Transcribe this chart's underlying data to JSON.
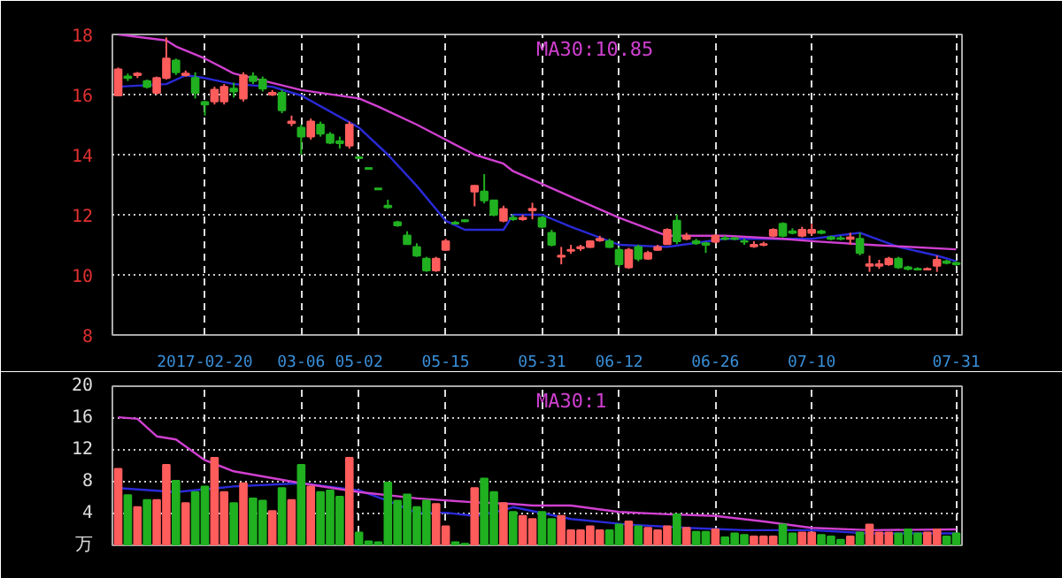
{
  "chart_data": [
    {
      "type": "candlestick",
      "categories": [
        null,
        null,
        null,
        null,
        null,
        null,
        null,
        null,
        null,
        "2017-02-20",
        null,
        null,
        null,
        null,
        null,
        null,
        null,
        null,
        null,
        "03-06",
        null,
        null,
        null,
        null,
        null,
        "05-02",
        null,
        null,
        null,
        null,
        null,
        null,
        null,
        null,
        "05-15",
        null,
        null,
        null,
        null,
        null,
        null,
        null,
        null,
        null,
        "05-31",
        null,
        null,
        null,
        null,
        null,
        null,
        null,
        "06-12",
        null,
        null,
        null,
        null,
        null,
        null,
        null,
        null,
        null,
        "06-26",
        null,
        null,
        null,
        null,
        null,
        null,
        null,
        null,
        null,
        "07-10",
        null,
        null,
        null,
        null,
        null,
        null,
        null,
        null,
        null,
        null,
        null,
        null,
        null,
        null,
        "07-31"
      ],
      "ohlc": [
        [
          15.97,
          16.9,
          15.95,
          16.84
        ],
        [
          16.6,
          16.7,
          16.45,
          16.55
        ],
        [
          16.65,
          16.75,
          16.55,
          16.7
        ],
        [
          16.45,
          16.5,
          16.2,
          16.26
        ],
        [
          16.06,
          16.6,
          16.0,
          16.55
        ],
        [
          16.55,
          17.9,
          16.5,
          17.2
        ],
        [
          17.13,
          17.2,
          16.65,
          16.74
        ],
        [
          16.65,
          16.8,
          16.6,
          16.7
        ],
        [
          16.55,
          16.74,
          15.87,
          16.06
        ],
        [
          15.75,
          15.8,
          15.3,
          15.67
        ],
        [
          15.77,
          16.26,
          15.67,
          16.16
        ],
        [
          15.77,
          16.35,
          15.67,
          16.26
        ],
        [
          16.2,
          16.4,
          15.9,
          16.1
        ],
        [
          15.87,
          16.74,
          15.77,
          16.64
        ],
        [
          16.6,
          16.74,
          16.35,
          16.45
        ],
        [
          16.5,
          16.6,
          16.1,
          16.2
        ],
        [
          16.0,
          16.15,
          15.95,
          16.06
        ],
        [
          16.06,
          16.16,
          15.38,
          15.48
        ],
        [
          15.05,
          15.3,
          14.95,
          15.1
        ],
        [
          14.9,
          15.0,
          14.0,
          14.6
        ],
        [
          14.6,
          15.2,
          14.5,
          15.1
        ],
        [
          15.0,
          15.1,
          14.6,
          14.7
        ],
        [
          14.67,
          14.75,
          14.35,
          14.4
        ],
        [
          14.45,
          14.6,
          14.2,
          14.38
        ],
        [
          14.3,
          15.1,
          14.2,
          15.0
        ],
        [
          13.9,
          13.9,
          13.9,
          13.9
        ],
        [
          13.54,
          13.54,
          13.54,
          13.54
        ],
        [
          12.86,
          12.86,
          12.86,
          12.86
        ],
        [
          12.3,
          12.5,
          12.2,
          12.25
        ],
        [
          11.75,
          11.8,
          11.6,
          11.65
        ],
        [
          11.31,
          11.45,
          11.0,
          11.02
        ],
        [
          10.93,
          11.05,
          10.6,
          10.64
        ],
        [
          10.54,
          10.6,
          10.1,
          10.15
        ],
        [
          10.15,
          10.6,
          10.1,
          10.54
        ],
        [
          10.83,
          11.2,
          10.8,
          11.12
        ],
        [
          11.72,
          11.8,
          11.7,
          11.72
        ],
        [
          11.8,
          11.85,
          11.75,
          11.8
        ],
        [
          12.77,
          12.98,
          12.28,
          12.96
        ],
        [
          12.77,
          13.35,
          12.38,
          12.48
        ],
        [
          12.48,
          12.5,
          11.95,
          12.0
        ],
        [
          11.8,
          12.3,
          11.75,
          12.19
        ],
        [
          11.9,
          12.0,
          11.8,
          11.85
        ],
        [
          11.85,
          12.0,
          11.8,
          11.9
        ],
        [
          12.15,
          12.4,
          11.85,
          12.2
        ],
        [
          11.9,
          11.95,
          11.55,
          11.6
        ],
        [
          11.4,
          11.5,
          10.95,
          11.0
        ],
        [
          10.6,
          10.93,
          10.35,
          10.64
        ],
        [
          10.8,
          11.0,
          10.7,
          10.83
        ],
        [
          10.88,
          11.0,
          10.8,
          10.93
        ],
        [
          10.93,
          11.15,
          10.9,
          11.12
        ],
        [
          11.15,
          11.3,
          11.1,
          11.2
        ],
        [
          11.12,
          11.2,
          10.9,
          10.93
        ],
        [
          10.83,
          10.93,
          10.25,
          10.35
        ],
        [
          10.25,
          10.9,
          10.2,
          10.83
        ],
        [
          10.93,
          11.0,
          10.45,
          10.54
        ],
        [
          10.54,
          10.8,
          10.5,
          10.73
        ],
        [
          10.83,
          11.0,
          10.8,
          10.93
        ],
        [
          11.02,
          11.55,
          11.0,
          11.5
        ],
        [
          11.8,
          12.0,
          11.02,
          11.12
        ],
        [
          11.2,
          11.4,
          11.15,
          11.3
        ],
        [
          11.12,
          11.2,
          11.0,
          11.05
        ],
        [
          11.05,
          11.1,
          10.73,
          11.0
        ],
        [
          11.1,
          11.35,
          11.05,
          11.3
        ],
        [
          11.22,
          11.3,
          11.15,
          11.2
        ],
        [
          11.22,
          11.25,
          11.15,
          11.2
        ],
        [
          11.12,
          11.2,
          11.0,
          11.1
        ],
        [
          10.95,
          11.12,
          10.9,
          11.0
        ],
        [
          11.0,
          11.1,
          10.95,
          11.02
        ],
        [
          11.3,
          11.55,
          11.25,
          11.5
        ],
        [
          11.7,
          11.75,
          11.25,
          11.3
        ],
        [
          11.45,
          11.55,
          11.35,
          11.4
        ],
        [
          11.3,
          11.6,
          11.25,
          11.5
        ],
        [
          11.4,
          11.7,
          11.3,
          11.5
        ],
        [
          11.45,
          11.5,
          11.35,
          11.4
        ],
        [
          11.25,
          11.3,
          11.15,
          11.2
        ],
        [
          11.22,
          11.3,
          11.15,
          11.2
        ],
        [
          11.2,
          11.4,
          11.0,
          11.25
        ],
        [
          11.2,
          11.4,
          10.65,
          10.73
        ],
        [
          10.3,
          10.64,
          10.1,
          10.35
        ],
        [
          10.3,
          10.5,
          10.2,
          10.35
        ],
        [
          10.35,
          10.6,
          10.3,
          10.54
        ],
        [
          10.54,
          10.6,
          10.2,
          10.25
        ],
        [
          10.25,
          10.3,
          10.15,
          10.2
        ],
        [
          10.2,
          10.25,
          10.15,
          10.18
        ],
        [
          10.18,
          10.25,
          10.15,
          10.2
        ],
        [
          10.3,
          10.64,
          10.1,
          10.5
        ],
        [
          10.45,
          10.5,
          10.35,
          10.4
        ],
        [
          10.4,
          10.45,
          10.3,
          10.35
        ]
      ],
      "colors": [
        "#ff5c5c",
        "#20b020",
        "#ff5c5c",
        "#20b020",
        "#ff5c5c",
        "#ff5c5c",
        "#20b020",
        "#ff5c5c",
        "#20b020",
        "#20b020",
        "#ff5c5c",
        "#ff5c5c",
        "#20b020",
        "#ff5c5c",
        "#20b020",
        "#20b020",
        "#ff5c5c",
        "#20b020",
        "#ff5c5c",
        "#20b020",
        "#ff5c5c",
        "#20b020",
        "#20b020",
        "#20b020",
        "#ff5c5c",
        "#20b020",
        "#20b020",
        "#20b020",
        "#20b020",
        "#20b020",
        "#20b020",
        "#20b020",
        "#20b020",
        "#ff5c5c",
        "#ff5c5c",
        "#20b020",
        "#20b020",
        "#ff5c5c",
        "#20b020",
        "#20b020",
        "#ff5c5c",
        "#20b020",
        "#ff5c5c",
        "#ff5c5c",
        "#20b020",
        "#20b020",
        "#ff5c5c",
        "#ff5c5c",
        "#ff5c5c",
        "#ff5c5c",
        "#ff5c5c",
        "#20b020",
        "#20b020",
        "#ff5c5c",
        "#20b020",
        "#ff5c5c",
        "#ff5c5c",
        "#ff5c5c",
        "#20b020",
        "#ff5c5c",
        "#20b020",
        "#20b020",
        "#ff5c5c",
        "#20b020",
        "#20b020",
        "#20b020",
        "#ff5c5c",
        "#ff5c5c",
        "#ff5c5c",
        "#20b020",
        "#20b020",
        "#ff5c5c",
        "#ff5c5c",
        "#20b020",
        "#20b020",
        "#20b020",
        "#ff5c5c",
        "#20b020",
        "#ff5c5c",
        "#ff5c5c",
        "#ff5c5c",
        "#20b020",
        "#20b020",
        "#20b020",
        "#ff5c5c",
        "#ff5c5c",
        "#20b020",
        "#20b020"
      ],
      "series": [
        {
          "type": "line",
          "color": "#2a2ad8",
          "values": [
            16.26,
            null,
            null,
            null,
            null,
            16.35,
            null,
            16.64,
            null,
            16.55,
            null,
            null,
            16.35,
            null,
            null,
            null,
            16.26,
            null,
            null,
            15.97,
            null,
            null,
            null,
            null,
            null,
            14.9,
            null,
            null,
            14.0,
            null,
            null,
            12.96,
            null,
            null,
            11.8,
            null,
            11.5,
            null,
            null,
            null,
            11.5,
            12.0,
            null,
            null,
            12.0,
            null,
            null,
            11.6,
            null,
            null,
            null,
            null,
            11.0,
            null,
            null,
            null,
            null,
            10.93,
            null,
            null,
            null,
            null,
            null,
            11.2,
            null,
            null,
            null,
            null,
            null,
            11.2,
            null,
            null,
            11.2,
            null,
            null,
            null,
            null,
            11.4,
            null,
            null,
            null,
            10.93,
            null,
            null,
            null,
            10.64,
            null,
            10.45
          ]
        },
        {
          "type": "line",
          "name": "MA30:10.85",
          "color": "#d040d0",
          "values": [
            18.0,
            null,
            null,
            null,
            null,
            17.8,
            17.6,
            null,
            null,
            17.2,
            null,
            null,
            16.7,
            null,
            null,
            null,
            null,
            null,
            null,
            16.15,
            null,
            null,
            null,
            null,
            null,
            15.87,
            null,
            15.6,
            null,
            null,
            null,
            15.0,
            null,
            null,
            14.5,
            null,
            null,
            14.0,
            null,
            null,
            13.7,
            13.45,
            null,
            null,
            null,
            null,
            null,
            12.6,
            null,
            null,
            null,
            null,
            11.9,
            null,
            null,
            null,
            null,
            11.3,
            null,
            null,
            null,
            null,
            null,
            11.3,
            null,
            null,
            null,
            null,
            null,
            11.2,
            null,
            null,
            11.12,
            null,
            null,
            null,
            null,
            null,
            11.0,
            null,
            null,
            null,
            null,
            null,
            null,
            null,
            null,
            10.85
          ]
        }
      ],
      "ylim": [
        8,
        18
      ],
      "yticks": [
        8,
        10,
        12,
        14,
        16,
        18
      ],
      "grid": true,
      "legend": "top"
    },
    {
      "type": "bar",
      "categories": [
        null,
        null,
        null,
        null,
        null,
        null,
        null,
        null,
        null,
        null,
        null,
        null,
        null,
        null,
        null,
        null,
        null,
        null,
        null,
        null,
        null,
        null,
        null,
        null,
        null,
        null,
        null,
        null,
        null,
        null,
        null,
        null,
        null,
        null,
        null,
        null,
        null,
        null,
        null,
        null,
        null,
        null,
        null,
        null,
        null,
        null,
        null,
        null,
        null,
        null,
        null,
        null,
        null,
        null,
        null,
        null,
        null,
        null,
        null,
        null,
        null,
        null,
        null,
        null,
        null,
        null,
        null,
        null,
        null,
        null,
        null,
        null,
        null,
        null,
        null,
        null,
        null,
        null,
        null,
        null,
        null,
        null,
        null,
        null,
        null,
        null,
        null,
        null
      ],
      "tick_labels": "y",
      "values": [
        9.6,
        6.3,
        4.8,
        5.7,
        5.7,
        10.1,
        8.1,
        5.3,
        6.7,
        7.4,
        11.0,
        6.7,
        5.3,
        7.8,
        5.9,
        5.6,
        4.3,
        7.2,
        5.7,
        10.1,
        7.4,
        6.7,
        6.9,
        6.1,
        11.0,
        1.6,
        0.5,
        0.4,
        7.9,
        5.6,
        6.4,
        4.8,
        5.6,
        5.2,
        2.4,
        0.4,
        0.2,
        7.2,
        8.4,
        6.7,
        5.3,
        4.2,
        3.7,
        3.3,
        4.2,
        3.3,
        3.7,
        1.9,
        1.9,
        2.4,
        1.9,
        1.9,
        2.6,
        3.0,
        2.4,
        2.2,
        1.9,
        2.4,
        3.9,
        2.2,
        1.7,
        1.7,
        2.0,
        1.0,
        1.5,
        1.3,
        1.1,
        1.1,
        1.1,
        2.6,
        1.5,
        1.6,
        1.6,
        1.3,
        1.1,
        0.7,
        1.1,
        1.6,
        2.6,
        1.6,
        1.6,
        1.5,
        2.0,
        1.5,
        1.6,
        2.0,
        1.1,
        1.5
      ],
      "colors": [
        "#ff5c5c",
        "#20b020",
        "#ff5c5c",
        "#20b020",
        "#ff5c5c",
        "#ff5c5c",
        "#20b020",
        "#ff5c5c",
        "#20b020",
        "#20b020",
        "#ff5c5c",
        "#ff5c5c",
        "#20b020",
        "#ff5c5c",
        "#20b020",
        "#20b020",
        "#ff5c5c",
        "#20b020",
        "#ff5c5c",
        "#20b020",
        "#ff5c5c",
        "#20b020",
        "#20b020",
        "#20b020",
        "#ff5c5c",
        "#20b020",
        "#20b020",
        "#20b020",
        "#20b020",
        "#20b020",
        "#20b020",
        "#20b020",
        "#20b020",
        "#ff5c5c",
        "#ff5c5c",
        "#20b020",
        "#20b020",
        "#ff5c5c",
        "#20b020",
        "#20b020",
        "#ff5c5c",
        "#20b020",
        "#ff5c5c",
        "#ff5c5c",
        "#20b020",
        "#20b020",
        "#ff5c5c",
        "#ff5c5c",
        "#ff5c5c",
        "#ff5c5c",
        "#ff5c5c",
        "#20b020",
        "#20b020",
        "#ff5c5c",
        "#20b020",
        "#ff5c5c",
        "#ff5c5c",
        "#ff5c5c",
        "#20b020",
        "#ff5c5c",
        "#20b020",
        "#20b020",
        "#ff5c5c",
        "#20b020",
        "#20b020",
        "#20b020",
        "#ff5c5c",
        "#ff5c5c",
        "#ff5c5c",
        "#20b020",
        "#20b020",
        "#ff5c5c",
        "#ff5c5c",
        "#20b020",
        "#20b020",
        "#20b020",
        "#ff5c5c",
        "#20b020",
        "#ff5c5c",
        "#ff5c5c",
        "#ff5c5c",
        "#20b020",
        "#20b020",
        "#20b020",
        "#ff5c5c",
        "#ff5c5c",
        "#20b020",
        "#20b020"
      ],
      "series": [
        {
          "type": "line",
          "color": "#2a2ad8",
          "values": [
            7.2,
            null,
            null,
            null,
            null,
            null,
            6.7,
            null,
            null,
            null,
            null,
            null,
            7.4,
            null,
            null,
            null,
            null,
            null,
            null,
            7.8,
            null,
            null,
            null,
            null,
            null,
            6.9,
            null,
            null,
            5.6,
            null,
            null,
            4.1,
            null,
            null,
            4.1,
            null,
            null,
            3.7,
            null,
            null,
            4.4,
            4.8,
            null,
            null,
            null,
            null,
            null,
            3.3,
            null,
            null,
            null,
            null,
            null,
            2.6,
            null,
            null,
            null,
            null,
            null,
            2.2,
            null,
            null,
            null,
            null,
            null,
            1.9,
            null,
            null,
            null,
            null,
            null,
            null,
            1.9,
            null,
            null,
            null,
            null,
            null,
            1.5,
            null,
            null,
            null,
            null,
            null,
            null,
            null,
            null,
            1.5
          ]
        },
        {
          "type": "line",
          "name": "MA30:1",
          "color": "#d040d0",
          "values": [
            16.1,
            null,
            15.9,
            null,
            13.7,
            null,
            13.3,
            null,
            null,
            10.7,
            null,
            null,
            9.3,
            null,
            null,
            null,
            null,
            null,
            null,
            7.8,
            null,
            null,
            null,
            null,
            null,
            6.7,
            null,
            null,
            null,
            null,
            null,
            5.9,
            null,
            null,
            null,
            null,
            null,
            5.4,
            null,
            null,
            null,
            5.2,
            null,
            5.0,
            null,
            null,
            null,
            5.0,
            null,
            null,
            null,
            null,
            4.2,
            null,
            null,
            null,
            null,
            3.9,
            null,
            null,
            null,
            null,
            3.7,
            null,
            null,
            null,
            null,
            3.0,
            null,
            null,
            null,
            null,
            2.2,
            null,
            null,
            null,
            null,
            null,
            1.9,
            null,
            null,
            null,
            null,
            null,
            null,
            null,
            null,
            2.0
          ]
        }
      ],
      "ylim": [
        0,
        20
      ],
      "yticks": [
        {
          "value": 0,
          "label": "万"
        },
        4,
        8,
        12,
        16,
        20
      ],
      "grid": true,
      "legend": "top"
    }
  ]
}
